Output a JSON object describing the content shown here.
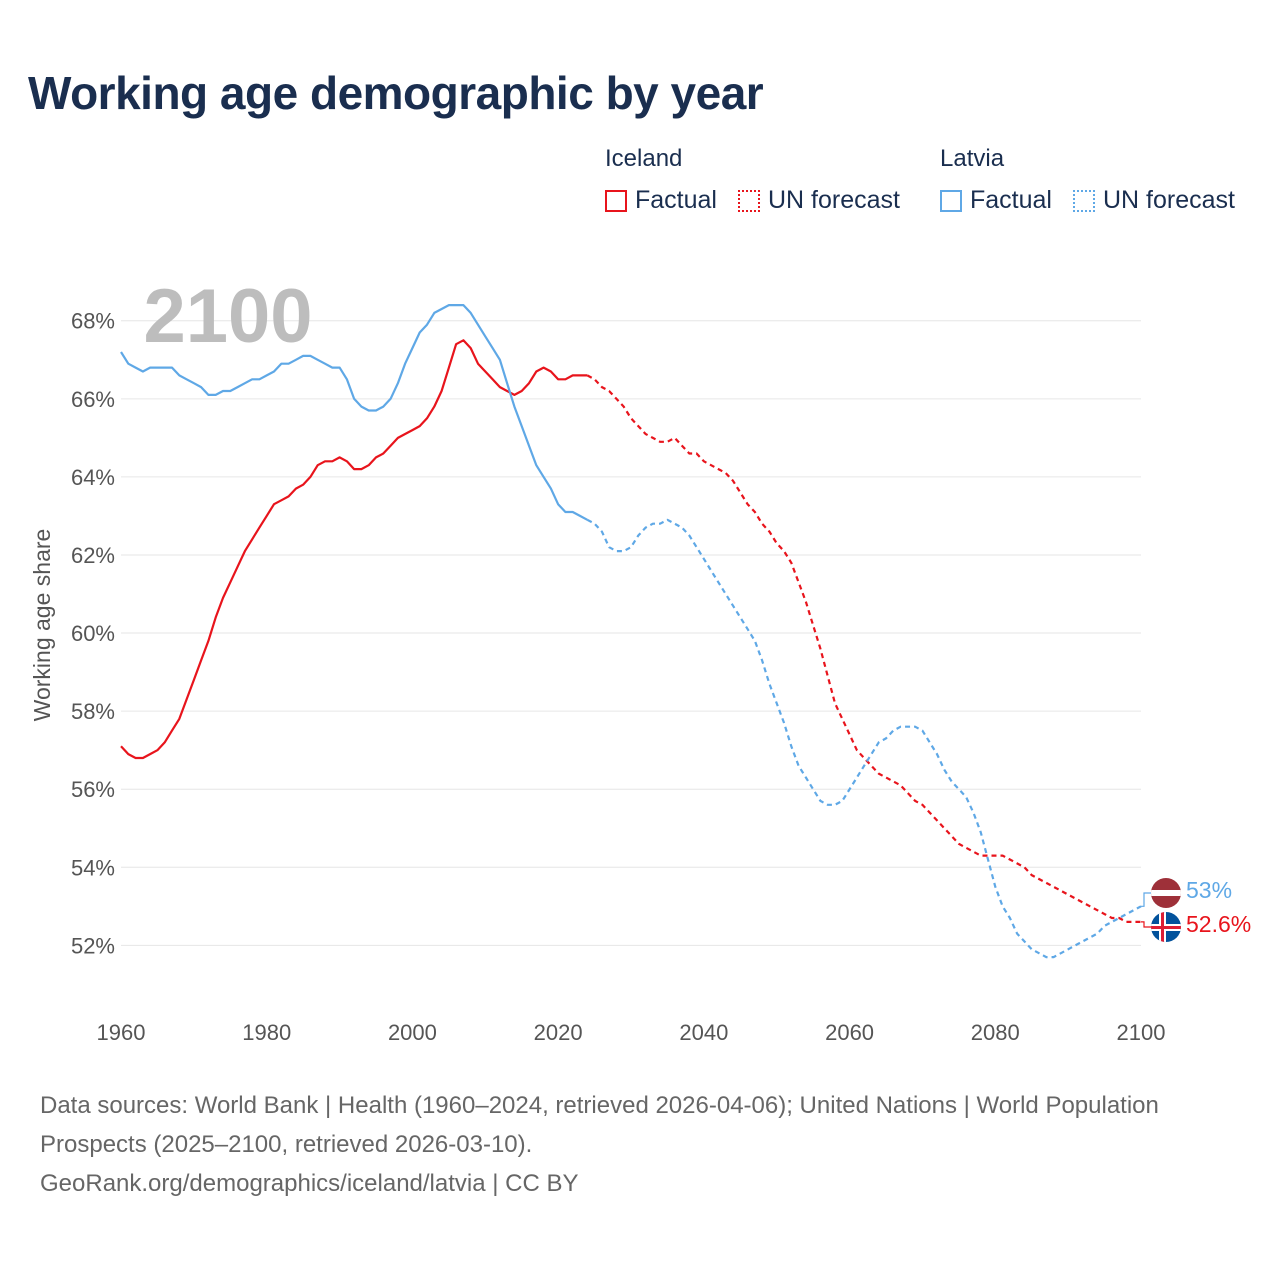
{
  "title": "Working age demographic by year",
  "legend": {
    "groups": [
      {
        "name": "Iceland",
        "color": "#e8141c",
        "factual_label": "Factual",
        "forecast_label": "UN forecast"
      },
      {
        "name": "Latvia",
        "color": "#5fa8e6",
        "factual_label": "Factual",
        "forecast_label": "UN forecast"
      }
    ]
  },
  "footer": {
    "line1": "Data sources: World Bank | Health (1960–2024, retrieved 2026-04-06); United Nations | World Population Prospects (2025–2100, retrieved 2026-03-10).",
    "line2": "GeoRank.org/demographics/iceland/latvia | CC BY"
  },
  "chart_data": {
    "type": "line",
    "year_label": "2100",
    "ylabel": "Working age share",
    "xlim": [
      1960,
      2100
    ],
    "ylim": [
      50.6,
      69.3
    ],
    "x_ticks": [
      1960,
      1980,
      2000,
      2020,
      2040,
      2060,
      2080,
      2100
    ],
    "y_ticks": [
      52,
      54,
      56,
      58,
      60,
      62,
      64,
      66,
      68
    ],
    "y_tick_suffix": "%",
    "factual_end_year": 2024,
    "series": [
      {
        "name": "Iceland",
        "color": "#e8141c",
        "end_label": "52.6%",
        "points": [
          [
            1960,
            57.1
          ],
          [
            1961,
            56.9
          ],
          [
            1962,
            56.8
          ],
          [
            1963,
            56.8
          ],
          [
            1964,
            56.9
          ],
          [
            1965,
            57.0
          ],
          [
            1966,
            57.2
          ],
          [
            1967,
            57.5
          ],
          [
            1968,
            57.8
          ],
          [
            1969,
            58.3
          ],
          [
            1970,
            58.8
          ],
          [
            1971,
            59.3
          ],
          [
            1972,
            59.8
          ],
          [
            1973,
            60.4
          ],
          [
            1974,
            60.9
          ],
          [
            1975,
            61.3
          ],
          [
            1976,
            61.7
          ],
          [
            1977,
            62.1
          ],
          [
            1978,
            62.4
          ],
          [
            1979,
            62.7
          ],
          [
            1980,
            63.0
          ],
          [
            1981,
            63.3
          ],
          [
            1982,
            63.4
          ],
          [
            1983,
            63.5
          ],
          [
            1984,
            63.7
          ],
          [
            1985,
            63.8
          ],
          [
            1986,
            64.0
          ],
          [
            1987,
            64.3
          ],
          [
            1988,
            64.4
          ],
          [
            1989,
            64.4
          ],
          [
            1990,
            64.5
          ],
          [
            1991,
            64.4
          ],
          [
            1992,
            64.2
          ],
          [
            1993,
            64.2
          ],
          [
            1994,
            64.3
          ],
          [
            1995,
            64.5
          ],
          [
            1996,
            64.6
          ],
          [
            1997,
            64.8
          ],
          [
            1998,
            65.0
          ],
          [
            1999,
            65.1
          ],
          [
            2000,
            65.2
          ],
          [
            2001,
            65.3
          ],
          [
            2002,
            65.5
          ],
          [
            2003,
            65.8
          ],
          [
            2004,
            66.2
          ],
          [
            2005,
            66.8
          ],
          [
            2006,
            67.4
          ],
          [
            2007,
            67.5
          ],
          [
            2008,
            67.3
          ],
          [
            2009,
            66.9
          ],
          [
            2010,
            66.7
          ],
          [
            2011,
            66.5
          ],
          [
            2012,
            66.3
          ],
          [
            2013,
            66.2
          ],
          [
            2014,
            66.1
          ],
          [
            2015,
            66.2
          ],
          [
            2016,
            66.4
          ],
          [
            2017,
            66.7
          ],
          [
            2018,
            66.8
          ],
          [
            2019,
            66.7
          ],
          [
            2020,
            66.5
          ],
          [
            2021,
            66.5
          ],
          [
            2022,
            66.6
          ],
          [
            2023,
            66.6
          ],
          [
            2024,
            66.6
          ],
          [
            2025,
            66.5
          ],
          [
            2026,
            66.3
          ],
          [
            2027,
            66.2
          ],
          [
            2028,
            66.0
          ],
          [
            2029,
            65.8
          ],
          [
            2030,
            65.5
          ],
          [
            2031,
            65.3
          ],
          [
            2032,
            65.1
          ],
          [
            2033,
            65.0
          ],
          [
            2034,
            64.9
          ],
          [
            2035,
            64.9
          ],
          [
            2036,
            65.0
          ],
          [
            2037,
            64.8
          ],
          [
            2038,
            64.6
          ],
          [
            2039,
            64.6
          ],
          [
            2040,
            64.4
          ],
          [
            2041,
            64.3
          ],
          [
            2042,
            64.2
          ],
          [
            2043,
            64.1
          ],
          [
            2044,
            63.9
          ],
          [
            2045,
            63.6
          ],
          [
            2046,
            63.3
          ],
          [
            2047,
            63.1
          ],
          [
            2048,
            62.8
          ],
          [
            2049,
            62.6
          ],
          [
            2050,
            62.3
          ],
          [
            2051,
            62.1
          ],
          [
            2052,
            61.8
          ],
          [
            2053,
            61.3
          ],
          [
            2054,
            60.8
          ],
          [
            2055,
            60.2
          ],
          [
            2056,
            59.6
          ],
          [
            2057,
            58.9
          ],
          [
            2058,
            58.2
          ],
          [
            2059,
            57.8
          ],
          [
            2060,
            57.4
          ],
          [
            2061,
            57.0
          ],
          [
            2062,
            56.8
          ],
          [
            2063,
            56.6
          ],
          [
            2064,
            56.4
          ],
          [
            2065,
            56.3
          ],
          [
            2066,
            56.2
          ],
          [
            2067,
            56.1
          ],
          [
            2068,
            55.9
          ],
          [
            2069,
            55.7
          ],
          [
            2070,
            55.6
          ],
          [
            2071,
            55.4
          ],
          [
            2072,
            55.2
          ],
          [
            2073,
            55.0
          ],
          [
            2074,
            54.8
          ],
          [
            2075,
            54.6
          ],
          [
            2076,
            54.5
          ],
          [
            2077,
            54.4
          ],
          [
            2078,
            54.3
          ],
          [
            2079,
            54.3
          ],
          [
            2080,
            54.3
          ],
          [
            2081,
            54.3
          ],
          [
            2082,
            54.2
          ],
          [
            2083,
            54.1
          ],
          [
            2084,
            54.0
          ],
          [
            2085,
            53.8
          ],
          [
            2086,
            53.7
          ],
          [
            2087,
            53.6
          ],
          [
            2088,
            53.5
          ],
          [
            2089,
            53.4
          ],
          [
            2090,
            53.3
          ],
          [
            2091,
            53.2
          ],
          [
            2092,
            53.1
          ],
          [
            2093,
            53.0
          ],
          [
            2094,
            52.9
          ],
          [
            2095,
            52.8
          ],
          [
            2096,
            52.7
          ],
          [
            2097,
            52.7
          ],
          [
            2098,
            52.6
          ],
          [
            2099,
            52.6
          ],
          [
            2100,
            52.6
          ]
        ]
      },
      {
        "name": "Latvia",
        "color": "#5fa8e6",
        "end_label": "53%",
        "points": [
          [
            1960,
            67.2
          ],
          [
            1961,
            66.9
          ],
          [
            1962,
            66.8
          ],
          [
            1963,
            66.7
          ],
          [
            1964,
            66.8
          ],
          [
            1965,
            66.8
          ],
          [
            1966,
            66.8
          ],
          [
            1967,
            66.8
          ],
          [
            1968,
            66.6
          ],
          [
            1969,
            66.5
          ],
          [
            1970,
            66.4
          ],
          [
            1971,
            66.3
          ],
          [
            1972,
            66.1
          ],
          [
            1973,
            66.1
          ],
          [
            1974,
            66.2
          ],
          [
            1975,
            66.2
          ],
          [
            1976,
            66.3
          ],
          [
            1977,
            66.4
          ],
          [
            1978,
            66.5
          ],
          [
            1979,
            66.5
          ],
          [
            1980,
            66.6
          ],
          [
            1981,
            66.7
          ],
          [
            1982,
            66.9
          ],
          [
            1983,
            66.9
          ],
          [
            1984,
            67.0
          ],
          [
            1985,
            67.1
          ],
          [
            1986,
            67.1
          ],
          [
            1987,
            67.0
          ],
          [
            1988,
            66.9
          ],
          [
            1989,
            66.8
          ],
          [
            1990,
            66.8
          ],
          [
            1991,
            66.5
          ],
          [
            1992,
            66.0
          ],
          [
            1993,
            65.8
          ],
          [
            1994,
            65.7
          ],
          [
            1995,
            65.7
          ],
          [
            1996,
            65.8
          ],
          [
            1997,
            66.0
          ],
          [
            1998,
            66.4
          ],
          [
            1999,
            66.9
          ],
          [
            2000,
            67.3
          ],
          [
            2001,
            67.7
          ],
          [
            2002,
            67.9
          ],
          [
            2003,
            68.2
          ],
          [
            2004,
            68.3
          ],
          [
            2005,
            68.4
          ],
          [
            2006,
            68.4
          ],
          [
            2007,
            68.4
          ],
          [
            2008,
            68.2
          ],
          [
            2009,
            67.9
          ],
          [
            2010,
            67.6
          ],
          [
            2011,
            67.3
          ],
          [
            2012,
            67.0
          ],
          [
            2013,
            66.4
          ],
          [
            2014,
            65.8
          ],
          [
            2015,
            65.3
          ],
          [
            2016,
            64.8
          ],
          [
            2017,
            64.3
          ],
          [
            2018,
            64.0
          ],
          [
            2019,
            63.7
          ],
          [
            2020,
            63.3
          ],
          [
            2021,
            63.1
          ],
          [
            2022,
            63.1
          ],
          [
            2023,
            63.0
          ],
          [
            2024,
            62.9
          ],
          [
            2025,
            62.8
          ],
          [
            2026,
            62.6
          ],
          [
            2027,
            62.2
          ],
          [
            2028,
            62.1
          ],
          [
            2029,
            62.1
          ],
          [
            2030,
            62.2
          ],
          [
            2031,
            62.5
          ],
          [
            2032,
            62.7
          ],
          [
            2033,
            62.8
          ],
          [
            2034,
            62.8
          ],
          [
            2035,
            62.9
          ],
          [
            2036,
            62.8
          ],
          [
            2037,
            62.7
          ],
          [
            2038,
            62.5
          ],
          [
            2039,
            62.2
          ],
          [
            2040,
            61.9
          ],
          [
            2041,
            61.6
          ],
          [
            2042,
            61.3
          ],
          [
            2043,
            61.0
          ],
          [
            2044,
            60.7
          ],
          [
            2045,
            60.4
          ],
          [
            2046,
            60.1
          ],
          [
            2047,
            59.8
          ],
          [
            2048,
            59.3
          ],
          [
            2049,
            58.7
          ],
          [
            2050,
            58.2
          ],
          [
            2051,
            57.7
          ],
          [
            2052,
            57.1
          ],
          [
            2053,
            56.6
          ],
          [
            2054,
            56.3
          ],
          [
            2055,
            56.0
          ],
          [
            2056,
            55.7
          ],
          [
            2057,
            55.6
          ],
          [
            2058,
            55.6
          ],
          [
            2059,
            55.7
          ],
          [
            2060,
            56.0
          ],
          [
            2061,
            56.3
          ],
          [
            2062,
            56.6
          ],
          [
            2063,
            56.9
          ],
          [
            2064,
            57.2
          ],
          [
            2065,
            57.3
          ],
          [
            2066,
            57.5
          ],
          [
            2067,
            57.6
          ],
          [
            2068,
            57.6
          ],
          [
            2069,
            57.6
          ],
          [
            2070,
            57.5
          ],
          [
            2071,
            57.2
          ],
          [
            2072,
            56.9
          ],
          [
            2073,
            56.5
          ],
          [
            2074,
            56.2
          ],
          [
            2075,
            56.0
          ],
          [
            2076,
            55.8
          ],
          [
            2077,
            55.4
          ],
          [
            2078,
            54.9
          ],
          [
            2079,
            54.2
          ],
          [
            2080,
            53.5
          ],
          [
            2081,
            53.0
          ],
          [
            2082,
            52.7
          ],
          [
            2083,
            52.3
          ],
          [
            2084,
            52.1
          ],
          [
            2085,
            51.9
          ],
          [
            2086,
            51.8
          ],
          [
            2087,
            51.7
          ],
          [
            2088,
            51.7
          ],
          [
            2089,
            51.8
          ],
          [
            2090,
            51.9
          ],
          [
            2091,
            52.0
          ],
          [
            2092,
            52.1
          ],
          [
            2093,
            52.2
          ],
          [
            2094,
            52.3
          ],
          [
            2095,
            52.5
          ],
          [
            2096,
            52.6
          ],
          [
            2097,
            52.7
          ],
          [
            2098,
            52.8
          ],
          [
            2099,
            52.9
          ],
          [
            2100,
            53.0
          ]
        ]
      }
    ]
  }
}
